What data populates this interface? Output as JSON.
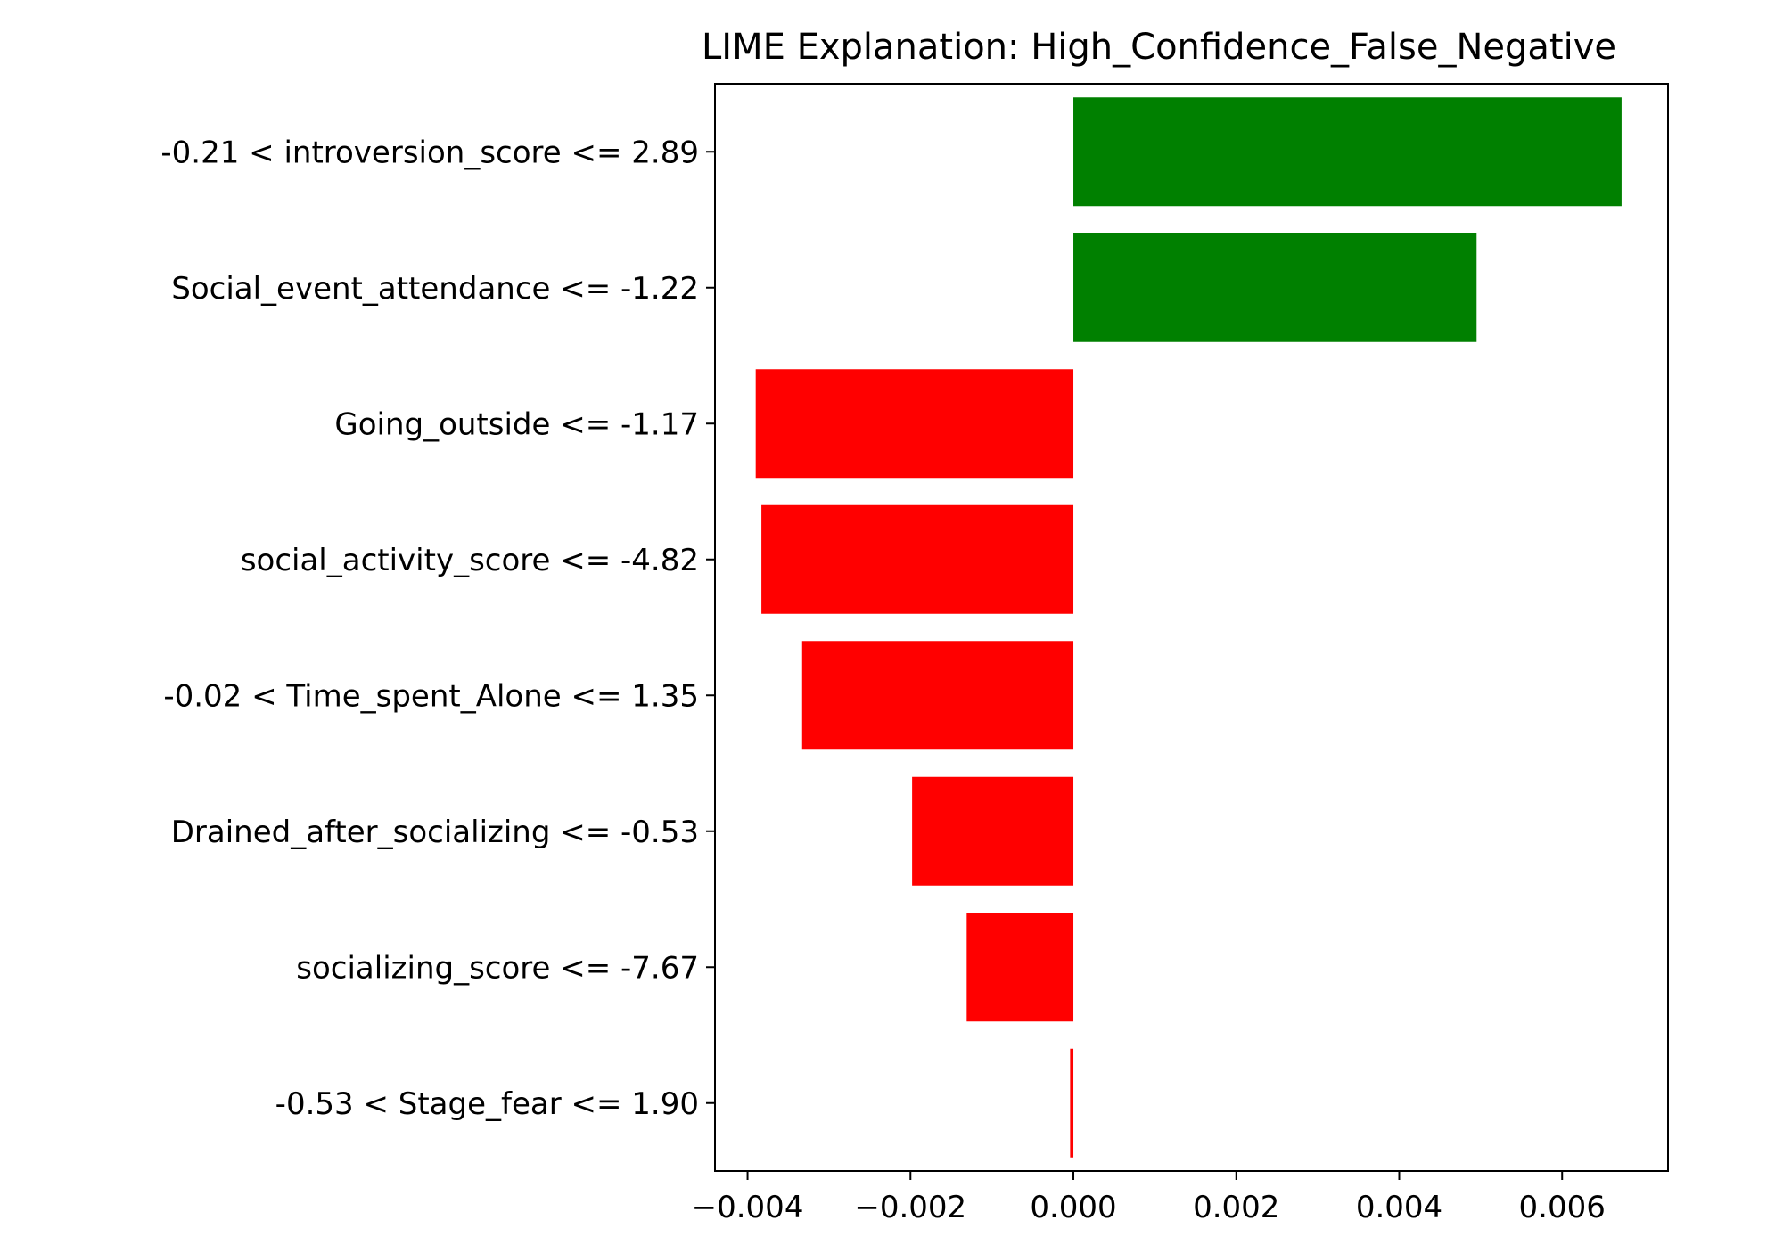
{
  "chart_data": {
    "type": "bar",
    "orientation": "horizontal",
    "title": "LIME Explanation: High_Confidence_False_Negative",
    "xlabel": "",
    "ylabel": "",
    "xlim": [
      -0.0044,
      0.0073
    ],
    "grid": false,
    "categories": [
      "-0.21 < introversion_score <= 2.89",
      "Social_event_attendance <= -1.22",
      "Going_outside <= -1.17",
      "social_activity_score <= -4.82",
      "-0.02 < Time_spent_Alone <= 1.35",
      "Drained_after_socializing <= -0.53",
      "socializing_score <= -7.67",
      "-0.53 < Stage_fear <= 1.90"
    ],
    "values": [
      0.00673,
      0.00495,
      -0.0039,
      -0.00383,
      -0.00333,
      -0.00198,
      -0.00131,
      -4e-05
    ],
    "xticks": [
      -0.004,
      -0.002,
      0.0,
      0.002,
      0.004,
      0.006
    ],
    "xtick_labels": [
      "−0.004",
      "−0.002",
      "0.000",
      "0.002",
      "0.004",
      "0.006"
    ],
    "colors": {
      "positive": "#008000",
      "negative": "#ff0000"
    }
  }
}
